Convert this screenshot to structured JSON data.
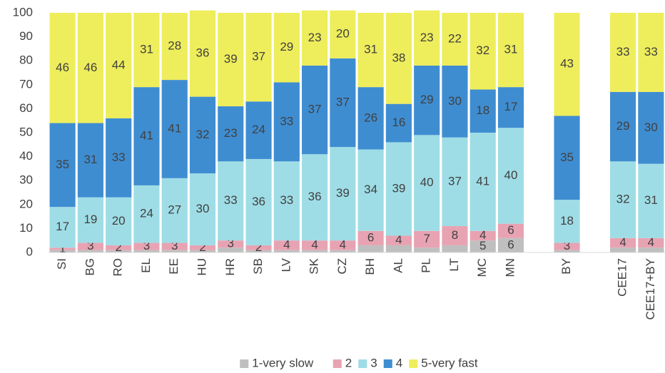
{
  "chart_data": {
    "type": "stacked_bar",
    "categories": [
      "SI",
      "BG",
      "RO",
      "EL",
      "EE",
      "HU",
      "HR",
      "SB",
      "LV",
      "SK",
      "CZ",
      "BH",
      "AL",
      "PL",
      "LT",
      "MC",
      "MN",
      null,
      "BY",
      null,
      "CEE17",
      "CEE17+BY"
    ],
    "series": [
      {
        "name": "1-very slow",
        "color": "#bfbfbf",
        "values": [
          1,
          1,
          1,
          1,
          1,
          1,
          2,
          1,
          1,
          1,
          1,
          3,
          3,
          2,
          3,
          5,
          6,
          null,
          1,
          null,
          2,
          2
        ],
        "value_labels": [
          null,
          null,
          null,
          null,
          null,
          null,
          null,
          null,
          null,
          null,
          null,
          null,
          null,
          null,
          null,
          "5",
          "6",
          null,
          null,
          null,
          null,
          null
        ]
      },
      {
        "name": "2",
        "color": "#e8a3b3",
        "values": [
          1,
          3,
          2,
          3,
          3,
          2,
          3,
          2,
          4,
          4,
          4,
          6,
          4,
          7,
          8,
          4,
          6,
          null,
          3,
          null,
          4,
          4
        ]
      },
      {
        "name": "3",
        "color": "#9fdde6",
        "values": [
          17,
          19,
          20,
          24,
          27,
          30,
          33,
          36,
          33,
          36,
          39,
          34,
          39,
          40,
          37,
          41,
          40,
          null,
          18,
          null,
          32,
          31
        ]
      },
      {
        "name": "4",
        "color": "#3f8dd1",
        "values": [
          35,
          31,
          33,
          41,
          41,
          32,
          23,
          24,
          33,
          37,
          37,
          26,
          16,
          29,
          30,
          18,
          17,
          null,
          35,
          null,
          29,
          30
        ]
      },
      {
        "name": "5-very fast",
        "color": "#eeed5c",
        "values": [
          46,
          46,
          44,
          31,
          28,
          36,
          39,
          37,
          29,
          23,
          20,
          31,
          38,
          23,
          22,
          32,
          31,
          null,
          43,
          null,
          33,
          33
        ]
      }
    ],
    "ylim": [
      0,
      100
    ],
    "yticks": [
      0,
      10,
      20,
      30,
      40,
      50,
      60,
      70,
      80,
      90,
      100
    ],
    "grid": false,
    "legend": "bottom"
  }
}
